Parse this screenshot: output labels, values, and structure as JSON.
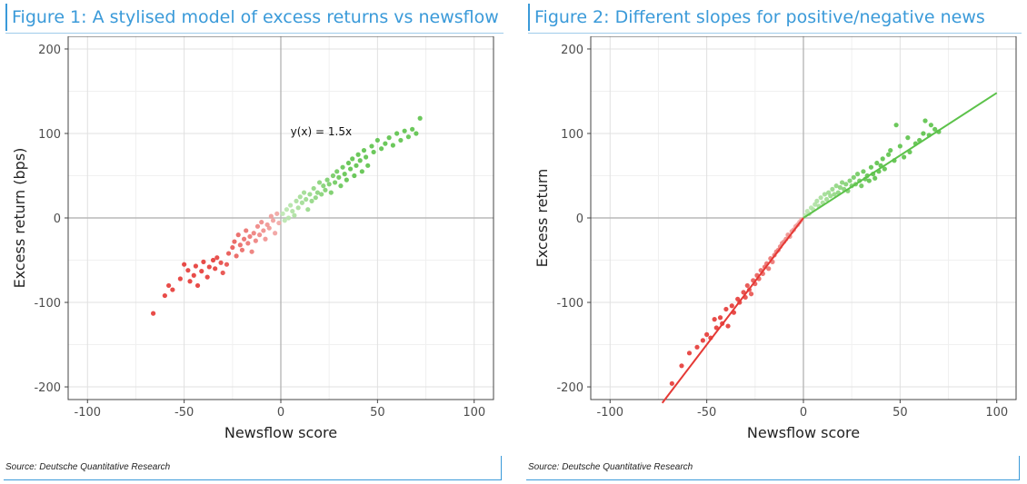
{
  "figures": [
    {
      "title": "Figure 1: A stylised model of excess returns vs newsflow",
      "source": "Source: Deutsche Quantitative Research"
    },
    {
      "title": "Figure 2: Different slopes for positive/negative news",
      "source": "Source: Deutsche Quantitative Research"
    }
  ],
  "colors": {
    "neg_dark": "#e53935",
    "neg_light": "#f2aaa8",
    "pos_dark": "#5cc24a",
    "pos_light": "#bfe8b4",
    "title_blue": "#3a9ad9"
  },
  "chart_data": [
    {
      "type": "scatter",
      "title": "",
      "xlabel": "Newsflow score",
      "ylabel": "Excess return (bps)",
      "xlim": [
        -110,
        110
      ],
      "ylim": [
        -215,
        215
      ],
      "xticks": [
        -100,
        -50,
        0,
        50,
        100
      ],
      "yticks": [
        -200,
        -100,
        0,
        100,
        200
      ],
      "xtick_labels": [
        "-100",
        "-50",
        "0",
        "50",
        "100"
      ],
      "ytick_labels": [
        "-200",
        "-100",
        "0",
        "100",
        "200"
      ],
      "grid": true,
      "annotation": {
        "text": "y(x) = 1.5x",
        "x": 5,
        "y": 98
      },
      "lines": [],
      "points": [
        [
          -66,
          -113
        ],
        [
          -60,
          -92
        ],
        [
          -58,
          -80
        ],
        [
          -56,
          -85
        ],
        [
          -52,
          -72
        ],
        [
          -50,
          -55
        ],
        [
          -48,
          -62
        ],
        [
          -47,
          -75
        ],
        [
          -45,
          -68
        ],
        [
          -44,
          -57
        ],
        [
          -43,
          -80
        ],
        [
          -41,
          -63
        ],
        [
          -40,
          -52
        ],
        [
          -38,
          -70
        ],
        [
          -37,
          -58
        ],
        [
          -35,
          -50
        ],
        [
          -34,
          -60
        ],
        [
          -33,
          -47
        ],
        [
          -31,
          -53
        ],
        [
          -30,
          -65
        ],
        [
          -28,
          -55
        ],
        [
          -27,
          -42
        ],
        [
          -25,
          -35
        ],
        [
          -24,
          -28
        ],
        [
          -23,
          -45
        ],
        [
          -22,
          -20
        ],
        [
          -21,
          -32
        ],
        [
          -20,
          -38
        ],
        [
          -19,
          -25
        ],
        [
          -18,
          -15
        ],
        [
          -17,
          -30
        ],
        [
          -16,
          -22
        ],
        [
          -15,
          -40
        ],
        [
          -14,
          -18
        ],
        [
          -13,
          -27
        ],
        [
          -12,
          -10
        ],
        [
          -11,
          -20
        ],
        [
          -10,
          -5
        ],
        [
          -9,
          -15
        ],
        [
          -8,
          -25
        ],
        [
          -7,
          -8
        ],
        [
          -6,
          -12
        ],
        [
          -5,
          2
        ],
        [
          -4,
          -3
        ],
        [
          -3,
          -18
        ],
        [
          -2,
          5
        ],
        [
          -1,
          -6
        ],
        [
          1,
          5
        ],
        [
          2,
          -3
        ],
        [
          3,
          10
        ],
        [
          4,
          0
        ],
        [
          5,
          15
        ],
        [
          6,
          8
        ],
        [
          7,
          3
        ],
        [
          8,
          20
        ],
        [
          9,
          12
        ],
        [
          10,
          25
        ],
        [
          11,
          18
        ],
        [
          12,
          30
        ],
        [
          13,
          22
        ],
        [
          14,
          10
        ],
        [
          15,
          28
        ],
        [
          16,
          20
        ],
        [
          17,
          35
        ],
        [
          18,
          24
        ],
        [
          19,
          30
        ],
        [
          20,
          42
        ],
        [
          21,
          28
        ],
        [
          22,
          38
        ],
        [
          23,
          33
        ],
        [
          24,
          45
        ],
        [
          25,
          40
        ],
        [
          26,
          30
        ],
        [
          27,
          50
        ],
        [
          28,
          42
        ],
        [
          29,
          55
        ],
        [
          30,
          48
        ],
        [
          31,
          38
        ],
        [
          32,
          60
        ],
        [
          33,
          52
        ],
        [
          34,
          45
        ],
        [
          35,
          65
        ],
        [
          36,
          58
        ],
        [
          37,
          70
        ],
        [
          38,
          50
        ],
        [
          39,
          62
        ],
        [
          40,
          75
        ],
        [
          41,
          68
        ],
        [
          42,
          55
        ],
        [
          43,
          80
        ],
        [
          44,
          72
        ],
        [
          45,
          62
        ],
        [
          47,
          85
        ],
        [
          48,
          78
        ],
        [
          50,
          92
        ],
        [
          52,
          82
        ],
        [
          54,
          88
        ],
        [
          56,
          95
        ],
        [
          58,
          86
        ],
        [
          60,
          100
        ],
        [
          62,
          92
        ],
        [
          64,
          103
        ],
        [
          66,
          96
        ],
        [
          68,
          105
        ],
        [
          70,
          100
        ],
        [
          72,
          118
        ]
      ]
    },
    {
      "type": "scatter",
      "title": "",
      "xlabel": "Newsflow score",
      "ylabel": "Excess return",
      "xlim": [
        -110,
        110
      ],
      "ylim": [
        -215,
        215
      ],
      "xticks": [
        -100,
        -50,
        0,
        50,
        100
      ],
      "yticks": [
        -200,
        -100,
        0,
        100,
        200
      ],
      "xtick_labels": [
        "-100",
        "-50",
        "0",
        "50",
        "100"
      ],
      "ytick_labels": [
        "-200",
        "-100",
        "0",
        "100",
        "200"
      ],
      "grid": true,
      "lines": [
        {
          "name": "negative-fit",
          "x": [
            -73,
            0
          ],
          "y": [
            -219,
            0
          ],
          "color": "#e53935"
        },
        {
          "name": "positive-fit",
          "x": [
            0,
            100
          ],
          "y": [
            0,
            148
          ],
          "color": "#5cc24a"
        }
      ],
      "points": [
        [
          -68,
          -196
        ],
        [
          -63,
          -175
        ],
        [
          -59,
          -160
        ],
        [
          -55,
          -153
        ],
        [
          -52,
          -145
        ],
        [
          -50,
          -138
        ],
        [
          -48,
          -142
        ],
        [
          -46,
          -120
        ],
        [
          -45,
          -130
        ],
        [
          -43,
          -118
        ],
        [
          -42,
          -125
        ],
        [
          -40,
          -108
        ],
        [
          -39,
          -128
        ],
        [
          -37,
          -104
        ],
        [
          -36,
          -112
        ],
        [
          -34,
          -96
        ],
        [
          -33,
          -100
        ],
        [
          -31,
          -88
        ],
        [
          -30,
          -94
        ],
        [
          -29,
          -80
        ],
        [
          -28,
          -85
        ],
        [
          -27,
          -90
        ],
        [
          -26,
          -74
        ],
        [
          -25,
          -78
        ],
        [
          -24,
          -68
        ],
        [
          -23,
          -72
        ],
        [
          -22,
          -62
        ],
        [
          -21,
          -66
        ],
        [
          -20,
          -58
        ],
        [
          -19,
          -54
        ],
        [
          -18,
          -60
        ],
        [
          -17,
          -48
        ],
        [
          -16,
          -52
        ],
        [
          -15,
          -44
        ],
        [
          -14,
          -40
        ],
        [
          -13,
          -38
        ],
        [
          -12,
          -34
        ],
        [
          -11,
          -30
        ],
        [
          -10,
          -28
        ],
        [
          -9,
          -25
        ],
        [
          -8,
          -20
        ],
        [
          -7,
          -22
        ],
        [
          -6,
          -16
        ],
        [
          -5,
          -14
        ],
        [
          -4,
          -10
        ],
        [
          -3,
          -8
        ],
        [
          -2,
          -5
        ],
        [
          -1,
          -2
        ],
        [
          1,
          3
        ],
        [
          2,
          8
        ],
        [
          3,
          5
        ],
        [
          4,
          12
        ],
        [
          5,
          10
        ],
        [
          6,
          16
        ],
        [
          7,
          20
        ],
        [
          8,
          14
        ],
        [
          9,
          24
        ],
        [
          10,
          18
        ],
        [
          11,
          28
        ],
        [
          12,
          22
        ],
        [
          13,
          30
        ],
        [
          14,
          26
        ],
        [
          15,
          34
        ],
        [
          16,
          28
        ],
        [
          17,
          38
        ],
        [
          18,
          30
        ],
        [
          19,
          36
        ],
        [
          20,
          42
        ],
        [
          21,
          34
        ],
        [
          22,
          40
        ],
        [
          23,
          32
        ],
        [
          24,
          44
        ],
        [
          25,
          38
        ],
        [
          26,
          48
        ],
        [
          27,
          40
        ],
        [
          28,
          52
        ],
        [
          29,
          44
        ],
        [
          30,
          38
        ],
        [
          31,
          55
        ],
        [
          32,
          46
        ],
        [
          33,
          50
        ],
        [
          34,
          44
        ],
        [
          35,
          60
        ],
        [
          36,
          52
        ],
        [
          37,
          47
        ],
        [
          38,
          65
        ],
        [
          39,
          55
        ],
        [
          40,
          62
        ],
        [
          41,
          70
        ],
        [
          42,
          58
        ],
        [
          44,
          75
        ],
        [
          45,
          80
        ],
        [
          47,
          68
        ],
        [
          48,
          110
        ],
        [
          50,
          85
        ],
        [
          52,
          72
        ],
        [
          54,
          95
        ],
        [
          55,
          78
        ],
        [
          58,
          88
        ],
        [
          60,
          92
        ],
        [
          62,
          100
        ],
        [
          63,
          115
        ],
        [
          65,
          98
        ],
        [
          66,
          110
        ],
        [
          68,
          105
        ],
        [
          70,
          102
        ]
      ]
    }
  ]
}
